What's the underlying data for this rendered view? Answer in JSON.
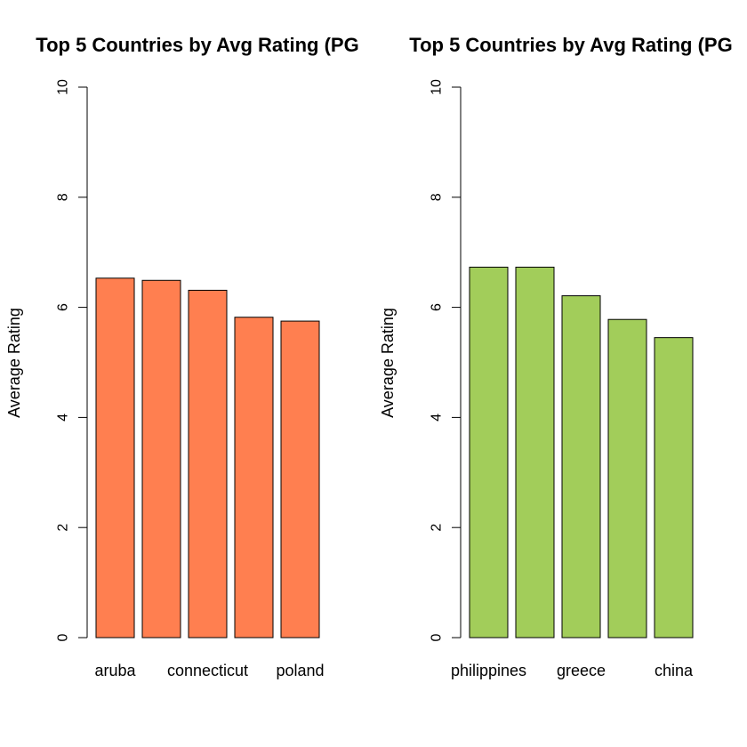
{
  "chart_data": [
    {
      "type": "bar",
      "title": "Top 5 Countries by Avg Rating (PG",
      "xlabel": "",
      "ylabel": "Average Rating",
      "ylim": [
        0,
        10
      ],
      "yticks": [
        "0",
        "2",
        "4",
        "6",
        "8",
        "10"
      ],
      "categories": [
        "aruba",
        "",
        "connecticut",
        "",
        "poland"
      ],
      "values": [
        6.53,
        6.49,
        6.31,
        5.82,
        5.75
      ],
      "color": "#FF7F50",
      "grid": false
    },
    {
      "type": "bar",
      "title": "Top 5 Countries by Avg Rating (PG",
      "xlabel": "",
      "ylabel": "Average Rating",
      "ylim": [
        0,
        10
      ],
      "yticks": [
        "0",
        "2",
        "4",
        "6",
        "8",
        "10"
      ],
      "categories": [
        "philippines",
        "",
        "greece",
        "",
        "china"
      ],
      "values": [
        6.73,
        6.73,
        6.21,
        5.78,
        5.45
      ],
      "color": "#A2CD5A",
      "grid": false
    }
  ]
}
